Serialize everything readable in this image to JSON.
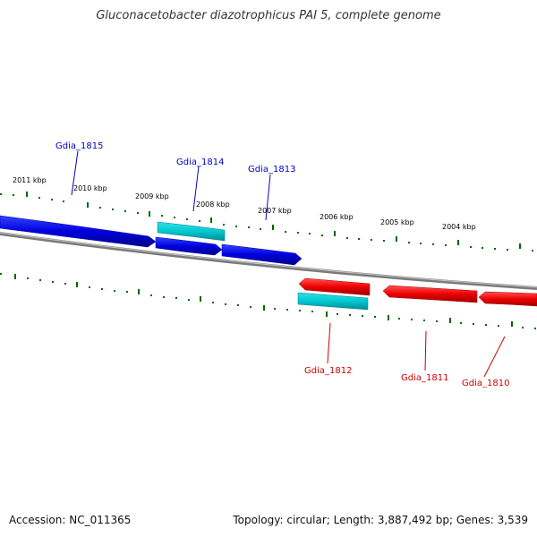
{
  "title": "Gluconacetobacter diazotrophicus PAI 5, complete genome",
  "footer": {
    "accession": "Accession: NC_011365",
    "summary": "Topology: circular; Length: 3,887,492 bp; Genes: 3,539"
  },
  "ruler": {
    "labels": [
      "2011 kbp",
      "2010 kbp",
      "2009 kbp",
      "2008 kbp",
      "2007 kbp",
      "2006 kbp",
      "2005 kbp",
      "2004 kbp"
    ]
  },
  "genes": [
    {
      "name": "Gdia_1815",
      "strand": "forward",
      "color": "#0000cc"
    },
    {
      "name": "Gdia_1814",
      "strand": "forward",
      "color": "#0000cc"
    },
    {
      "name": "Gdia_1813",
      "strand": "forward",
      "color": "#0000cc"
    },
    {
      "name": "Gdia_1812",
      "strand": "reverse",
      "color": "#cc0000"
    },
    {
      "name": "Gdia_1811",
      "strand": "reverse",
      "color": "#cc0000"
    },
    {
      "name": "Gdia_1810",
      "strand": "reverse",
      "color": "#cc0000"
    }
  ],
  "colors": {
    "forward_gene": "#0000ee",
    "reverse_gene": "#ee0000",
    "cds_feature": "#00c8d0",
    "backbone": "#888888",
    "ticks": "#006600"
  }
}
